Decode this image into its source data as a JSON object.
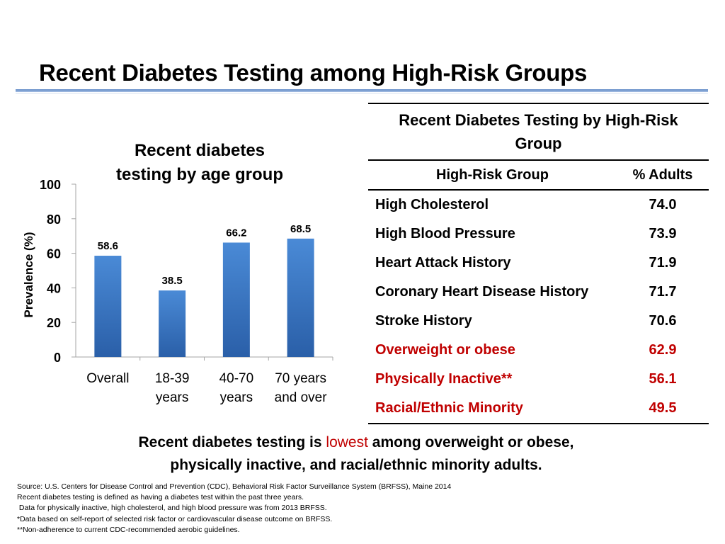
{
  "slide": {
    "title": "Recent Diabetes Testing among High-Risk Groups"
  },
  "chart_data": {
    "type": "bar",
    "title": "Recent diabetes testing by age group",
    "title_lines": [
      "Recent diabetes",
      "testing by age group"
    ],
    "ylabel": "Prevalence (%)",
    "xlabel": "",
    "categories": [
      [
        "Overall"
      ],
      [
        "18-39",
        "years"
      ],
      [
        "40-70",
        "years"
      ],
      [
        "70 years",
        "and over"
      ]
    ],
    "values": [
      58.6,
      38.5,
      66.2,
      68.5
    ],
    "data_labels": [
      "58.6",
      "38.5",
      "66.2",
      "68.5"
    ],
    "ylim": [
      0,
      100
    ],
    "yticks": [
      0,
      20,
      40,
      60,
      80,
      100
    ],
    "grid": false,
    "legend": "none",
    "bar_color": "#3a78c8"
  },
  "table": {
    "caption": "Recent Diabetes Testing by High-Risk Group",
    "columns": [
      "High-Risk Group",
      "% Adults"
    ],
    "rows": [
      {
        "group": "High Cholesterol",
        "value": "74.0",
        "highlight": false
      },
      {
        "group": "High Blood Pressure",
        "value": "73.9",
        "highlight": false
      },
      {
        "group": "Heart Attack History",
        "value": "71.9",
        "highlight": false
      },
      {
        "group": "Coronary Heart Disease History",
        "value": "71.7",
        "highlight": false
      },
      {
        "group": "Stroke History",
        "value": "70.6",
        "highlight": false
      },
      {
        "group": "Overweight or obese",
        "value": "62.9",
        "highlight": true
      },
      {
        "group": "Physically Inactive**",
        "value": "56.1",
        "highlight": true
      },
      {
        "group": "Racial/Ethnic Minority",
        "value": "49.5",
        "highlight": true
      }
    ],
    "highlight_color": "#c00000"
  },
  "summary": {
    "before": "Recent diabetes testing is ",
    "highlight": "lowest",
    "after": " among overweight or obese,",
    "line2": "physically inactive, and racial/ethnic minority adults."
  },
  "footnotes": [
    "Source: U.S. Centers for Disease Control and Prevention (CDC), Behavioral Risk Factor Surveillance System (BRFSS), Maine 2014",
    "Recent diabetes testing is defined as having a diabetes test within the past three years.",
    " Data for physically inactive, high cholesterol, and high blood pressure was from 2013 BRFSS.",
    "*Data based on self-report of selected risk factor or cardiovascular disease outcome on BRFSS.",
    "**Non-adherence to current CDC-recommended aerobic guidelines."
  ]
}
